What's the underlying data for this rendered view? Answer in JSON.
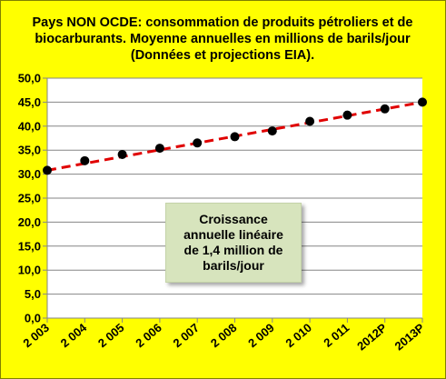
{
  "chart_data": {
    "type": "line",
    "title_lines": [
      "Pays NON OCDE: consommation de produits pétroliers et de",
      "biocarburants. Moyenne annuelles en millions de barils/jour",
      "(Données  et projections EIA)."
    ],
    "categories": [
      "2 003",
      "2 004",
      "2 005",
      "2 006",
      "2 007",
      "2 008",
      "2 009",
      "2 010",
      "2 011",
      "2012P",
      "2013P"
    ],
    "series": [
      {
        "values": [
          30.8,
          32.8,
          34.1,
          35.4,
          36.5,
          37.8,
          39.0,
          41.0,
          42.3,
          43.6,
          45.0
        ]
      }
    ],
    "trendline": {
      "start": 30.8,
      "end": 45.0,
      "style": "dashed"
    },
    "yticks": [
      "0,0",
      "5,0",
      "10,0",
      "15,0",
      "20,0",
      "25,0",
      "30,0",
      "35,0",
      "40,0",
      "45,0",
      "50,0"
    ],
    "ylim": [
      0,
      50
    ],
    "ystep": 5,
    "grid": true,
    "colors": {
      "background": "#ffff00",
      "plot": "#ffffff",
      "trend": "#e00000",
      "marker": "#000000",
      "annotation": "#d7e4bd"
    },
    "annotation_lines": [
      "Croissance",
      "annuelle  linéaire",
      "de 1,4 million de",
      "barils/jour"
    ]
  }
}
